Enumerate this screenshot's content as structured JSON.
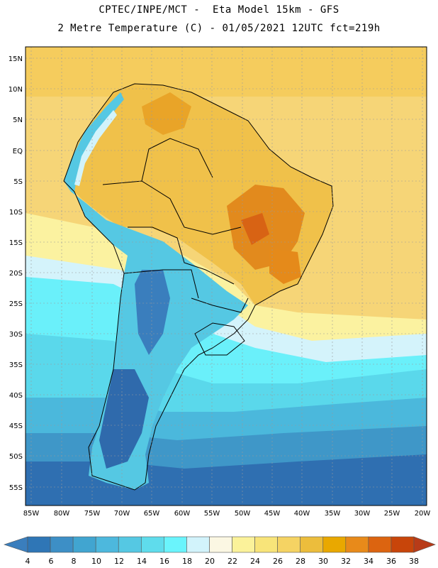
{
  "header": {
    "title_line1": "CPTEC/INPE/MCT -  Eta Model 15km - GFS",
    "title_line2": "2 Metre Temperature (C) - 01/05/2021 12UTC fct=219h"
  },
  "map": {
    "region": "South America",
    "lat_labels": [
      "15N",
      "10N",
      "5N",
      "EQ",
      "5S",
      "10S",
      "15S",
      "20S",
      "25S",
      "30S",
      "35S",
      "40S",
      "45S",
      "50S",
      "55S"
    ],
    "lon_labels": [
      "85W",
      "80W",
      "75W",
      "70W",
      "65W",
      "60W",
      "55W",
      "50W",
      "45W",
      "40W",
      "35W",
      "30W",
      "25W",
      "20W"
    ]
  },
  "legend": {
    "unit": "C",
    "ticks": [
      "4",
      "6",
      "8",
      "10",
      "12",
      "14",
      "16",
      "18",
      "20",
      "22",
      "24",
      "26",
      "28",
      "30",
      "32",
      "34",
      "36",
      "38"
    ],
    "colors": [
      "#3a7ebd",
      "#2f76b6",
      "#3d8fc6",
      "#41a5d0",
      "#4db8dd",
      "#55c8e3",
      "#5fdcec",
      "#6af4fc",
      "#d2f3fb",
      "#fbf7e3",
      "#fbf29a",
      "#f8e479",
      "#f5d363",
      "#ecbd3c",
      "#e9a800",
      "#e88a1a",
      "#dc6410",
      "#c8450a",
      "#b83b18"
    ]
  }
}
